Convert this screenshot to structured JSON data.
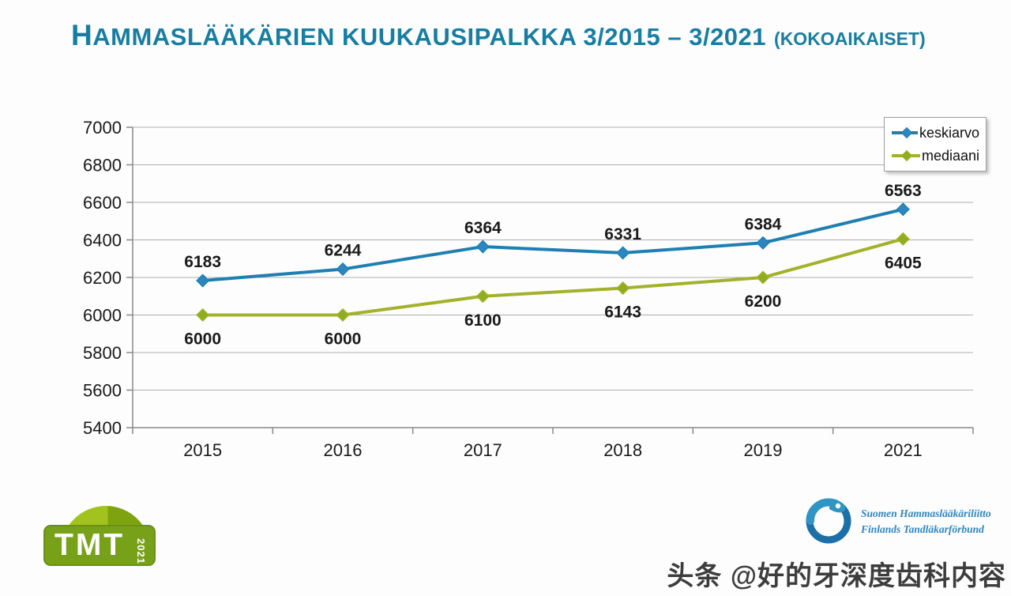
{
  "header": {
    "title_main": "HAMMASLÄÄKÄRIEN KUUKAUSIPALKKA 3/2015 – 3/2021",
    "title_suffix": "(KOKOAIKAISET)",
    "title_color": "#177ea2"
  },
  "chart_data": {
    "type": "line",
    "title": "Hammaslääkärien kuukausipalkka 3/2015 – 3/2021 (kokoaikaiset)",
    "categories": [
      "2015",
      "2016",
      "2017",
      "2018",
      "2019",
      "2021"
    ],
    "series": [
      {
        "name": "keskiarvo",
        "values": [
          6183,
          6244,
          6364,
          6331,
          6384,
          6563
        ],
        "color": "#1f7fb0",
        "marker_color": "#2e86c1",
        "label_position": "above"
      },
      {
        "name": "mediaani",
        "values": [
          6000,
          6000,
          6100,
          6143,
          6200,
          6405
        ],
        "color": "#a4b12a",
        "marker_color": "#8fad20",
        "label_position": "below"
      }
    ],
    "ylim": [
      5400,
      7000
    ],
    "ytick_step": 200,
    "grid": true,
    "legend_position": "top-right",
    "xlabel": "",
    "ylabel": ""
  },
  "footer": {
    "tmt_logo": {
      "text": "TMT",
      "year": "2021"
    },
    "association": {
      "line1": "Suomen Hammaslääkäriliitto",
      "line2": "Finlands Tandläkarförbund"
    },
    "watermark": "头条 @好的牙深度齿科内容"
  }
}
